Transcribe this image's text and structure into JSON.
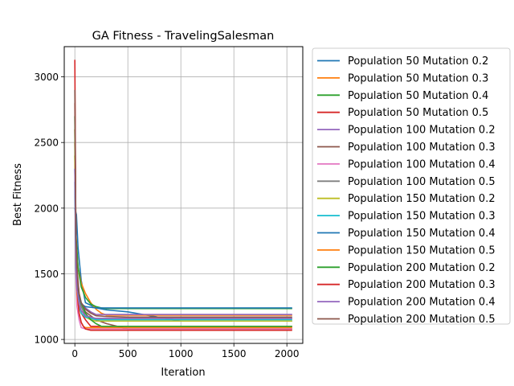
{
  "chart_data": {
    "type": "line",
    "title": "GA Fitness - TravelingSalesman",
    "xlabel": "Iteration",
    "ylabel": "Best Fitness",
    "xlim": [
      -100,
      2150
    ],
    "ylim": [
      970,
      3230
    ],
    "xticks": [
      0,
      500,
      1000,
      1500,
      2000
    ],
    "xtick_labels": [
      "0",
      "500",
      "1000",
      "1500",
      "2000"
    ],
    "yticks": [
      1000,
      1500,
      2000,
      2500,
      3000
    ],
    "ytick_labels": [
      "1000",
      "1500",
      "2000",
      "2500",
      "3000"
    ],
    "grid": true,
    "legend_position": "outside-right",
    "series": [
      {
        "name": "Population 50 Mutation 0.2",
        "color": "#1f77b4",
        "x": [
          0,
          15,
          30,
          60,
          100,
          200,
          300,
          500,
          1000,
          2050
        ],
        "y": [
          2000,
          1950,
          1700,
          1450,
          1280,
          1240,
          1225,
          1210,
          1140,
          1140
        ]
      },
      {
        "name": "Population 50 Mutation 0.3",
        "color": "#ff7f0e",
        "x": [
          0,
          10,
          30,
          60,
          100,
          150,
          200,
          250,
          300,
          2050
        ],
        "y": [
          2500,
          1800,
          1550,
          1430,
          1350,
          1280,
          1230,
          1200,
          1185,
          1185
        ]
      },
      {
        "name": "Population 50 Mutation 0.4",
        "color": "#2ca02c",
        "x": [
          0,
          10,
          30,
          60,
          100,
          150,
          200,
          250,
          300,
          2050
        ],
        "y": [
          2400,
          1800,
          1550,
          1400,
          1320,
          1270,
          1250,
          1240,
          1235,
          1235
        ]
      },
      {
        "name": "Population 50 Mutation 0.5",
        "color": "#d62728",
        "x": [
          0,
          10,
          20,
          40,
          60,
          100,
          150,
          2050
        ],
        "y": [
          2800,
          1700,
          1400,
          1250,
          1200,
          1150,
          1100,
          1100
        ]
      },
      {
        "name": "Population 100 Mutation 0.2",
        "color": "#9467bd",
        "x": [
          0,
          10,
          20,
          40,
          60,
          100,
          150,
          200,
          2050
        ],
        "y": [
          2300,
          1700,
          1450,
          1330,
          1280,
          1240,
          1210,
          1190,
          1190
        ]
      },
      {
        "name": "Population 100 Mutation 0.3",
        "color": "#8c564b",
        "x": [
          0,
          10,
          20,
          40,
          60,
          100,
          200,
          300,
          500,
          2050
        ],
        "y": [
          2600,
          1700,
          1450,
          1320,
          1270,
          1210,
          1150,
          1120,
          1080,
          1080
        ]
      },
      {
        "name": "Population 100 Mutation 0.4",
        "color": "#e377c2",
        "x": [
          0,
          10,
          20,
          40,
          60,
          100,
          2050
        ],
        "y": [
          2500,
          1500,
          1250,
          1150,
          1090,
          1080,
          1080
        ]
      },
      {
        "name": "Population 100 Mutation 0.5",
        "color": "#7f7f7f",
        "x": [
          0,
          10,
          20,
          40,
          60,
          100,
          200,
          2050
        ],
        "y": [
          2700,
          1700,
          1450,
          1320,
          1250,
          1180,
          1160,
          1160
        ]
      },
      {
        "name": "Population 150 Mutation 0.2",
        "color": "#bcbd22",
        "x": [
          0,
          10,
          20,
          40,
          60,
          100,
          150,
          200,
          2050
        ],
        "y": [
          2400,
          1600,
          1400,
          1280,
          1200,
          1170,
          1150,
          1140,
          1140
        ]
      },
      {
        "name": "Population 150 Mutation 0.3",
        "color": "#17becf",
        "x": [
          0,
          10,
          20,
          40,
          60,
          100,
          200,
          2050
        ],
        "y": [
          2300,
          1550,
          1380,
          1260,
          1200,
          1170,
          1150,
          1150
        ]
      },
      {
        "name": "Population 150 Mutation 0.4",
        "color": "#1f77b4",
        "x": [
          0,
          10,
          20,
          40,
          60,
          100,
          200,
          2050
        ],
        "y": [
          2200,
          1600,
          1420,
          1320,
          1270,
          1250,
          1240,
          1240
        ]
      },
      {
        "name": "Population 150 Mutation 0.5",
        "color": "#ff7f0e",
        "x": [
          0,
          10,
          20,
          40,
          60,
          80,
          100,
          2050
        ],
        "y": [
          2600,
          1600,
          1350,
          1200,
          1130,
          1100,
          1090,
          1090
        ]
      },
      {
        "name": "Population 200 Mutation 0.2",
        "color": "#2ca02c",
        "x": [
          0,
          10,
          20,
          40,
          60,
          100,
          150,
          200,
          250,
          2050
        ],
        "y": [
          2700,
          1700,
          1500,
          1350,
          1280,
          1200,
          1150,
          1120,
          1100,
          1100
        ]
      },
      {
        "name": "Population 200 Mutation 0.3",
        "color": "#d62728",
        "x": [
          0,
          10,
          20,
          40,
          60,
          80,
          100,
          150,
          2050
        ],
        "y": [
          3130,
          1700,
          1400,
          1200,
          1130,
          1100,
          1080,
          1070,
          1070
        ]
      },
      {
        "name": "Population 200 Mutation 0.4",
        "color": "#9467bd",
        "x": [
          0,
          10,
          20,
          40,
          60,
          100,
          150,
          200,
          2050
        ],
        "y": [
          2300,
          1550,
          1380,
          1270,
          1220,
          1180,
          1170,
          1160,
          1160
        ]
      },
      {
        "name": "Population 200 Mutation 0.5",
        "color": "#8c564b",
        "x": [
          0,
          10,
          20,
          40,
          60,
          100,
          150,
          200,
          300,
          500,
          2050
        ],
        "y": [
          2900,
          1800,
          1550,
          1350,
          1280,
          1230,
          1200,
          1180,
          1175,
          1170,
          1170
        ]
      }
    ]
  }
}
